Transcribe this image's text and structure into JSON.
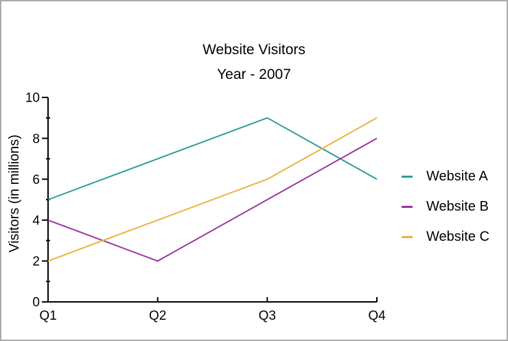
{
  "window": {
    "border_color": "#a9a9a9",
    "background_color": "#ffffff",
    "text_color": "#000000",
    "axis_color": "#000000"
  },
  "chart_data": {
    "type": "line",
    "title": "Website Visitors",
    "subtitle": "Year - 2007",
    "xlabel": "",
    "ylabel": "Visitors (in millions)",
    "categories": [
      "Q1",
      "Q2",
      "Q3",
      "Q4"
    ],
    "series": [
      {
        "name": "Website A",
        "color": "#2f9b9b",
        "values": [
          5,
          7,
          9,
          6
        ]
      },
      {
        "name": "Website B",
        "color": "#9a35a0",
        "values": [
          4,
          2,
          5,
          8
        ]
      },
      {
        "name": "Website C",
        "color": "#e7b63f",
        "values": [
          2,
          4,
          6,
          9
        ]
      }
    ],
    "ylim": [
      0,
      10
    ],
    "ytick_step": 2,
    "yminor_step": 1,
    "ytick_labels": [
      "0",
      "2",
      "4",
      "6",
      "8",
      "10"
    ],
    "grid": false,
    "legend_position": "right"
  }
}
